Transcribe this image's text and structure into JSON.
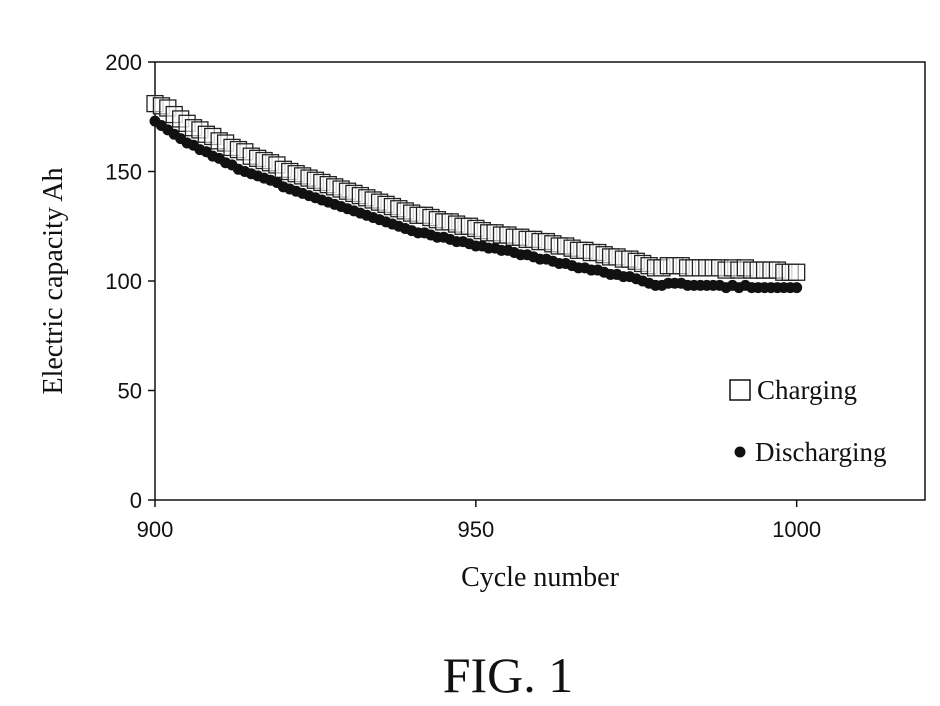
{
  "chart_data": {
    "type": "scatter",
    "title": "",
    "xlabel": "Cycle number",
    "ylabel": "Electric capacity Ah",
    "xlim": [
      900,
      1020
    ],
    "ylim": [
      0,
      200
    ],
    "xticks": [
      900,
      950,
      1000
    ],
    "yticks": [
      0,
      50,
      100,
      150,
      200
    ],
    "legend_position": "bottom-right",
    "series": [
      {
        "name": "Charging",
        "marker": "square",
        "x": [
          900,
          901,
          902,
          903,
          904,
          905,
          906,
          907,
          908,
          909,
          910,
          911,
          912,
          913,
          914,
          915,
          916,
          917,
          918,
          919,
          920,
          921,
          922,
          923,
          924,
          925,
          926,
          927,
          928,
          929,
          930,
          931,
          932,
          933,
          934,
          935,
          936,
          937,
          938,
          939,
          940,
          941,
          942,
          943,
          944,
          945,
          946,
          947,
          948,
          949,
          950,
          951,
          952,
          953,
          954,
          955,
          956,
          957,
          958,
          959,
          960,
          961,
          962,
          963,
          964,
          965,
          966,
          967,
          968,
          969,
          970,
          971,
          972,
          973,
          974,
          975,
          976,
          977,
          978,
          979,
          980,
          981,
          982,
          983,
          984,
          985,
          986,
          987,
          988,
          989,
          990,
          991,
          992,
          993,
          994,
          995,
          996,
          997,
          998,
          999,
          1000
        ],
        "y": [
          181,
          180,
          179,
          176,
          174,
          172,
          170,
          169,
          167,
          166,
          164,
          163,
          161,
          160,
          159,
          157,
          156,
          155,
          154,
          153,
          151,
          150,
          149,
          148,
          147,
          146,
          145,
          144,
          143,
          142,
          141,
          140,
          139,
          138,
          137,
          136,
          135,
          134,
          133,
          132,
          131,
          130,
          130,
          129,
          128,
          127,
          127,
          126,
          125,
          125,
          124,
          123,
          122,
          122,
          121,
          121,
          120,
          120,
          119,
          119,
          118,
          118,
          117,
          116,
          116,
          115,
          114,
          114,
          113,
          113,
          112,
          111,
          111,
          110,
          110,
          109,
          108,
          107,
          106,
          106,
          107,
          107,
          107,
          106,
          106,
          106,
          106,
          106,
          106,
          105,
          106,
          105,
          106,
          105,
          105,
          105,
          105,
          105,
          104,
          104,
          104
        ]
      },
      {
        "name": "Discharging",
        "marker": "circle",
        "x": [
          900,
          901,
          902,
          903,
          904,
          905,
          906,
          907,
          908,
          909,
          910,
          911,
          912,
          913,
          914,
          915,
          916,
          917,
          918,
          919,
          920,
          921,
          922,
          923,
          924,
          925,
          926,
          927,
          928,
          929,
          930,
          931,
          932,
          933,
          934,
          935,
          936,
          937,
          938,
          939,
          940,
          941,
          942,
          943,
          944,
          945,
          946,
          947,
          948,
          949,
          950,
          951,
          952,
          953,
          954,
          955,
          956,
          957,
          958,
          959,
          960,
          961,
          962,
          963,
          964,
          965,
          966,
          967,
          968,
          969,
          970,
          971,
          972,
          973,
          974,
          975,
          976,
          977,
          978,
          979,
          980,
          981,
          982,
          983,
          984,
          985,
          986,
          987,
          988,
          989,
          990,
          991,
          992,
          993,
          994,
          995,
          996,
          997,
          998,
          999,
          1000
        ],
        "y": [
          173,
          171,
          169,
          167,
          165,
          163,
          162,
          160,
          159,
          157,
          156,
          154,
          153,
          151,
          150,
          149,
          148,
          147,
          146,
          145,
          143,
          142,
          141,
          140,
          139,
          138,
          137,
          136,
          135,
          134,
          133,
          132,
          131,
          130,
          129,
          128,
          127,
          126,
          125,
          124,
          123,
          122,
          122,
          121,
          120,
          120,
          119,
          118,
          118,
          117,
          116,
          116,
          115,
          115,
          114,
          114,
          113,
          112,
          112,
          111,
          110,
          110,
          109,
          108,
          108,
          107,
          106,
          106,
          105,
          105,
          104,
          103,
          103,
          102,
          102,
          101,
          100,
          99,
          98,
          98,
          99,
          99,
          99,
          98,
          98,
          98,
          98,
          98,
          98,
          97,
          98,
          97,
          98,
          97,
          97,
          97,
          97,
          97,
          97,
          97,
          97
        ]
      }
    ]
  },
  "figure_caption": "FIG. 1"
}
